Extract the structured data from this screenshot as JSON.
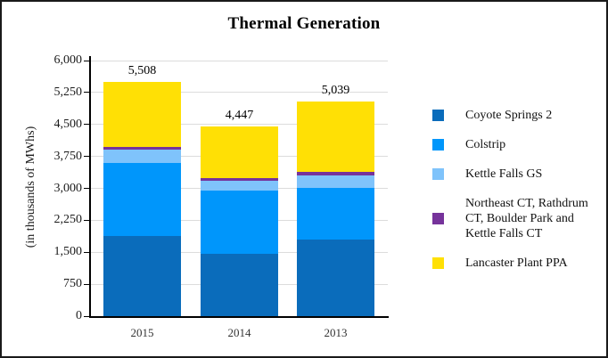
{
  "chart_data": {
    "type": "bar",
    "variant": "stacked-vertical",
    "title": "Thermal Generation",
    "ylabel": "(in thousands of MWhs)",
    "xlabel": "",
    "ylim": [
      0,
      6000
    ],
    "ytick_step": 750,
    "yticks": [
      "6,000",
      "5,250",
      "4,500",
      "3,750",
      "3,000",
      "2,250",
      "1,500",
      "750",
      "0"
    ],
    "grid": "horizontal-light",
    "legend_position": "right",
    "categories": [
      "2015",
      "2014",
      "2013"
    ],
    "totals": [
      "5,508",
      "4,447",
      "5,039"
    ],
    "total_values": [
      5508,
      4447,
      5039
    ],
    "series": [
      {
        "name": "Coyote Springs 2",
        "color": "#0a6cbb",
        "values": [
          1880,
          1470,
          1790
        ]
      },
      {
        "name": "Colstrip",
        "color": "#0096fb",
        "values": [
          1710,
          1480,
          1230
        ]
      },
      {
        "name": "Kettle Falls GS",
        "color": "#7fc3fb",
        "values": [
          330,
          230,
          290
        ]
      },
      {
        "name": "Northeast CT, Rathdrum CT, Boulder Park and Kettle Falls CT",
        "color": "#76339b",
        "values": [
          60,
          60,
          70
        ]
      },
      {
        "name": "Lancaster Plant PPA",
        "color": "#ffe005",
        "values": [
          1528,
          1207,
          1659
        ]
      }
    ]
  }
}
